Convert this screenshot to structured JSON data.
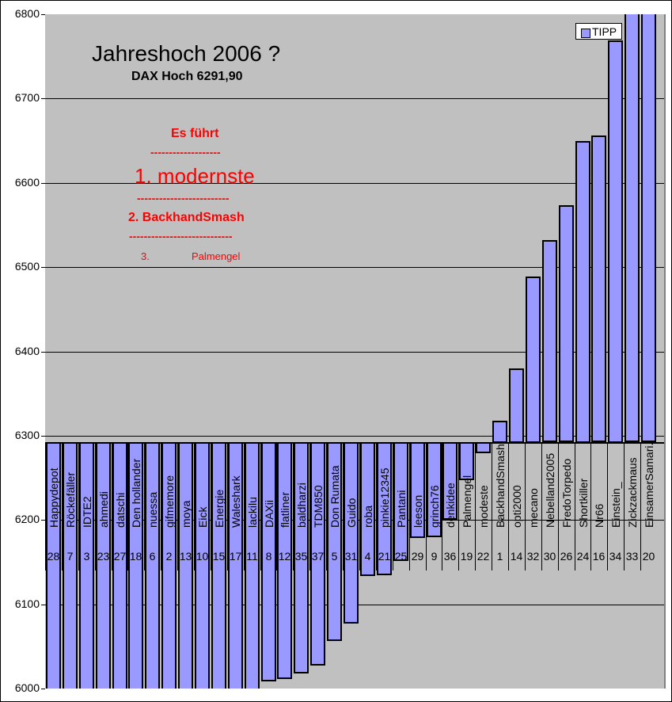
{
  "chart_data": {
    "type": "bar",
    "title": "Jahreshoch 2006 ?",
    "subtitle": "DAX Hoch 6291,90",
    "baseline": 6291.9,
    "xlabel": "",
    "ylabel": "",
    "ylim": [
      6000,
      6800
    ],
    "yticks": [
      6000,
      6100,
      6200,
      6300,
      6400,
      6500,
      6600,
      6700,
      6800
    ],
    "grid": true,
    "legend": {
      "position": "top-right",
      "entries": [
        "TIPP"
      ]
    },
    "series": [
      {
        "name": "TIPP",
        "color": "#9999ff"
      }
    ],
    "categories": [
      "Happydepot",
      "Röckefäller",
      "IDTE2",
      "ahmedi",
      "datschi",
      "Den hollander",
      "nuessa",
      "gifmemore",
      "moya",
      "Eick",
      "Energie",
      "Waleshark",
      "lackilu",
      "DAXii",
      "flatliner",
      "baldharzi",
      "TDM850",
      "Don Rumata",
      "Guido",
      "roba",
      "pinkie12345",
      "Pantani",
      "leeson",
      "grinch76",
      "denkidee",
      "Palmengel",
      "modeste",
      "BackhandSmash",
      "opti2000",
      "mecano",
      "Nebelland2005",
      "FredoTorpedo",
      "Shortkiller",
      "Nr66",
      "Einstein_",
      "Zickzackmaus",
      "EinsamerSamari."
    ],
    "ranks": [
      28,
      7,
      3,
      23,
      27,
      18,
      6,
      2,
      13,
      10,
      15,
      17,
      11,
      8,
      12,
      35,
      37,
      5,
      31,
      4,
      21,
      25,
      29,
      9,
      36,
      19,
      22,
      1,
      14,
      32,
      30,
      26,
      24,
      16,
      34,
      33,
      20
    ],
    "values": [
      5990,
      5990,
      5990,
      5990,
      5990,
      5990,
      5990,
      5990,
      5990,
      5990,
      5990,
      5990,
      5990,
      6008,
      6011,
      6017,
      6027,
      6056,
      6077,
      6133,
      6134,
      6151,
      6178,
      6179,
      6200,
      6247,
      6279,
      6318,
      6380,
      6489,
      6532,
      6573,
      6650,
      6656,
      6769,
      6810,
      6810
    ]
  },
  "annotations": {
    "leader_heading": "Es führt",
    "dash1": "-------------------",
    "first": "1.    modernste",
    "dash2": "-------------------------",
    "second": "2.   BackhandSmash",
    "dash3": "----------------------------",
    "third_num": "3.",
    "third_name": "Palmengel"
  },
  "colors": {
    "bar": "#9999ff",
    "plot_bg": "#c0c0c0",
    "annotation": "#ff0000"
  }
}
